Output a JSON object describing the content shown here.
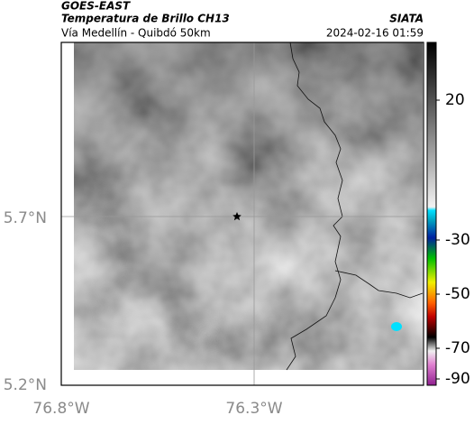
{
  "header": {
    "satellite": "GOES-EAST",
    "product": "Temperatura de Brillo CH13",
    "route": "Vía Medellín - Quibdó 50km",
    "source": "SIATA",
    "datetime": "2024-02-16 01:59"
  },
  "map": {
    "lat_ticks": [
      "5.7°N",
      "5.2°N"
    ],
    "lon_ticks": [
      "76.8°W",
      "76.3°W"
    ]
  },
  "colorbar": {
    "ticks": [
      20,
      -30,
      -50,
      -70,
      -90
    ]
  }
}
